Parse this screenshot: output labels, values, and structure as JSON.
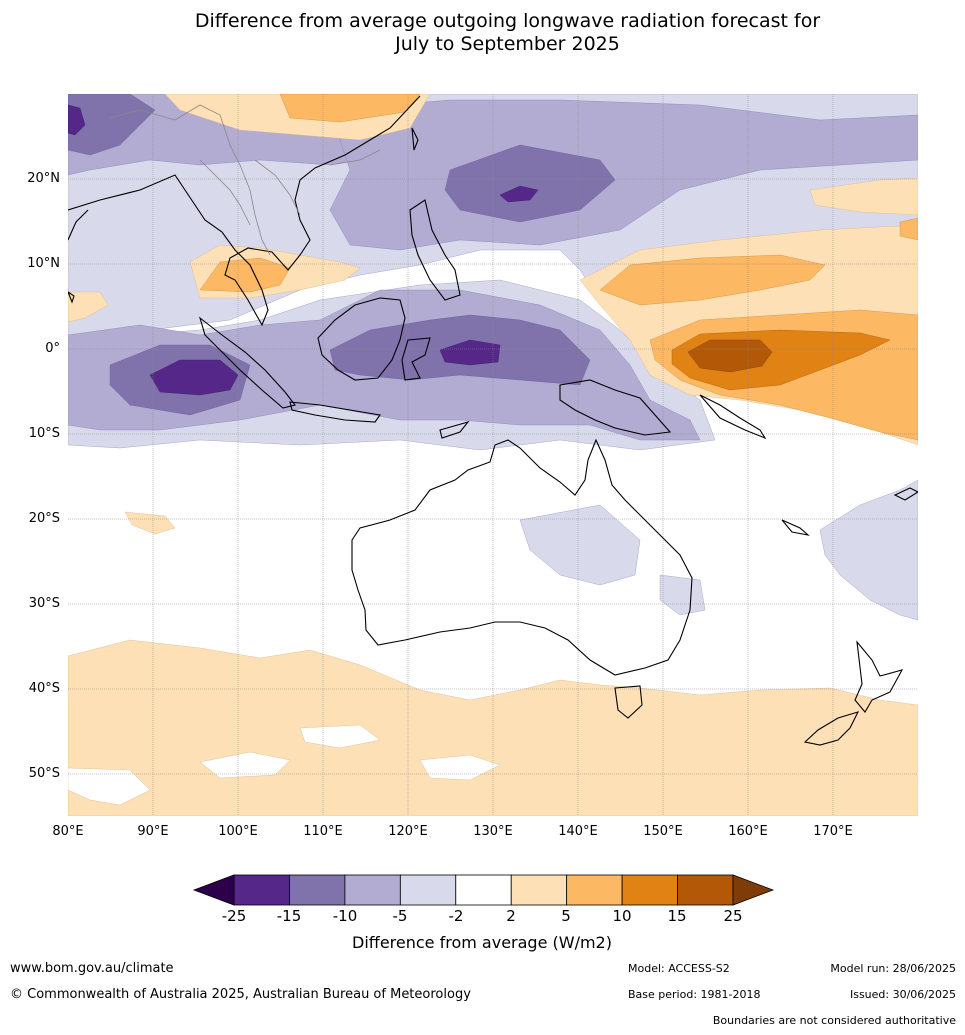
{
  "title": {
    "line1": "Difference from average outgoing longwave radiation forecast for",
    "line2": "July to September 2025"
  },
  "map": {
    "region": "Indo-Pacific and Australia",
    "lat_labels": [
      "20°N",
      "10°N",
      "0°",
      "10°S",
      "20°S",
      "30°S",
      "40°S",
      "50°S"
    ],
    "lon_labels": [
      "80°E",
      "90°E",
      "100°E",
      "110°E",
      "120°E",
      "130°E",
      "140°E",
      "150°E",
      "160°E",
      "170°E"
    ]
  },
  "legend": {
    "title": "Difference from average (W/m2)",
    "ticks": [
      "-25",
      "-15",
      "-10",
      "-5",
      "-2",
      "2",
      "5",
      "10",
      "15",
      "25"
    ],
    "colors": {
      "neg_extreme": "#2d004b",
      "neg_25_15": "#542788",
      "neg_15_10": "#8073ac",
      "neg_10_5": "#b2abd2",
      "neg_5_2": "#d8daeb",
      "neutral": "#ffffff",
      "pos_2_5": "#fee0b6",
      "pos_5_10": "#fdb863",
      "pos_10_15": "#e08214",
      "pos_15_25": "#b35806",
      "pos_extreme": "#7f3b08"
    }
  },
  "footer": {
    "website": "www.bom.gov.au/climate",
    "copyright": "© Commonwealth of Australia 2025, Australian Bureau of Meteorology",
    "model": "Model: ACCESS-S2",
    "base_period": "Base period: 1981-2018",
    "model_run": "Model run: 28/06/2025",
    "issued": "Issued: 30/06/2025",
    "disclaimer": "Boundaries are not considered authoritative"
  }
}
